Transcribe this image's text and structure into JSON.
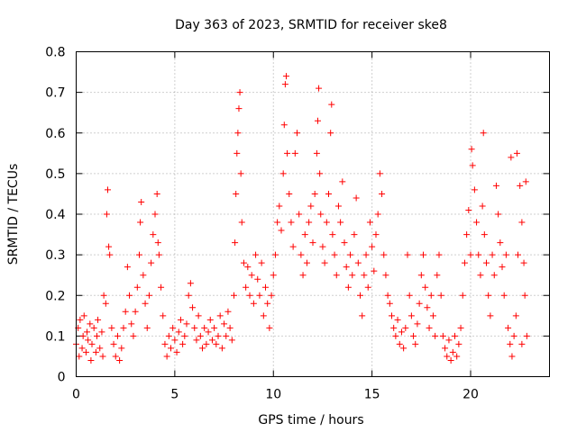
{
  "chart_data": {
    "type": "scatter",
    "title": "Day 363 of 2023, SRMTID for receiver ske8",
    "xlabel": "GPS time / hours",
    "ylabel": "SRMTID / TECUs",
    "xlim": [
      0,
      24
    ],
    "ylim": [
      0,
      0.8
    ],
    "xticks": [
      0,
      5,
      10,
      15,
      20
    ],
    "yticks": [
      0,
      0.1,
      0.2,
      0.3,
      0.4,
      0.5,
      0.6,
      0.7,
      0.8
    ],
    "xtick_labels": [
      "0",
      "5",
      "10",
      "15",
      "20"
    ],
    "ytick_labels": [
      "0",
      "0.1",
      "0.2",
      "0.3",
      "0.4",
      "0.5",
      "0.6",
      "0.7",
      "0.8"
    ],
    "grid": true,
    "marker": "plus",
    "color": "#ff0000",
    "series": [
      {
        "name": "SRMTID",
        "points": [
          [
            0.0,
            0.08
          ],
          [
            0.1,
            0.12
          ],
          [
            0.15,
            0.05
          ],
          [
            0.2,
            0.14
          ],
          [
            0.3,
            0.07
          ],
          [
            0.35,
            0.1
          ],
          [
            0.4,
            0.15
          ],
          [
            0.5,
            0.06
          ],
          [
            0.55,
            0.11
          ],
          [
            0.6,
            0.09
          ],
          [
            0.7,
            0.13
          ],
          [
            0.75,
            0.04
          ],
          [
            0.8,
            0.08
          ],
          [
            0.9,
            0.12
          ],
          [
            1.0,
            0.06
          ],
          [
            1.05,
            0.1
          ],
          [
            1.1,
            0.14
          ],
          [
            1.2,
            0.07
          ],
          [
            1.3,
            0.11
          ],
          [
            1.35,
            0.05
          ],
          [
            1.4,
            0.2
          ],
          [
            1.5,
            0.18
          ],
          [
            1.55,
            0.4
          ],
          [
            1.6,
            0.46
          ],
          [
            1.65,
            0.32
          ],
          [
            1.7,
            0.3
          ],
          [
            1.8,
            0.12
          ],
          [
            1.9,
            0.08
          ],
          [
            2.0,
            0.05
          ],
          [
            2.1,
            0.1
          ],
          [
            2.2,
            0.04
          ],
          [
            2.3,
            0.07
          ],
          [
            2.4,
            0.12
          ],
          [
            2.5,
            0.16
          ],
          [
            2.6,
            0.27
          ],
          [
            2.7,
            0.2
          ],
          [
            2.8,
            0.13
          ],
          [
            2.9,
            0.1
          ],
          [
            3.0,
            0.16
          ],
          [
            3.1,
            0.22
          ],
          [
            3.2,
            0.3
          ],
          [
            3.25,
            0.38
          ],
          [
            3.3,
            0.43
          ],
          [
            3.4,
            0.25
          ],
          [
            3.5,
            0.18
          ],
          [
            3.6,
            0.12
          ],
          [
            3.7,
            0.2
          ],
          [
            3.8,
            0.28
          ],
          [
            3.9,
            0.35
          ],
          [
            4.0,
            0.4
          ],
          [
            4.1,
            0.45
          ],
          [
            4.15,
            0.33
          ],
          [
            4.2,
            0.3
          ],
          [
            4.3,
            0.22
          ],
          [
            4.4,
            0.15
          ],
          [
            4.5,
            0.08
          ],
          [
            4.6,
            0.05
          ],
          [
            4.7,
            0.1
          ],
          [
            4.8,
            0.07
          ],
          [
            4.9,
            0.12
          ],
          [
            5.0,
            0.09
          ],
          [
            5.1,
            0.06
          ],
          [
            5.2,
            0.11
          ],
          [
            5.3,
            0.14
          ],
          [
            5.4,
            0.08
          ],
          [
            5.5,
            0.1
          ],
          [
            5.6,
            0.13
          ],
          [
            5.7,
            0.2
          ],
          [
            5.8,
            0.23
          ],
          [
            5.9,
            0.17
          ],
          [
            6.0,
            0.12
          ],
          [
            6.1,
            0.09
          ],
          [
            6.2,
            0.15
          ],
          [
            6.3,
            0.1
          ],
          [
            6.4,
            0.07
          ],
          [
            6.5,
            0.12
          ],
          [
            6.6,
            0.08
          ],
          [
            6.7,
            0.11
          ],
          [
            6.8,
            0.14
          ],
          [
            6.9,
            0.09
          ],
          [
            7.0,
            0.12
          ],
          [
            7.1,
            0.08
          ],
          [
            7.2,
            0.1
          ],
          [
            7.3,
            0.15
          ],
          [
            7.4,
            0.07
          ],
          [
            7.5,
            0.13
          ],
          [
            7.6,
            0.1
          ],
          [
            7.7,
            0.16
          ],
          [
            7.8,
            0.12
          ],
          [
            7.9,
            0.09
          ],
          [
            8.0,
            0.2
          ],
          [
            8.05,
            0.33
          ],
          [
            8.1,
            0.45
          ],
          [
            8.15,
            0.55
          ],
          [
            8.2,
            0.6
          ],
          [
            8.25,
            0.66
          ],
          [
            8.3,
            0.7
          ],
          [
            8.35,
            0.5
          ],
          [
            8.4,
            0.38
          ],
          [
            8.5,
            0.28
          ],
          [
            8.6,
            0.22
          ],
          [
            8.7,
            0.27
          ],
          [
            8.8,
            0.2
          ],
          [
            8.9,
            0.25
          ],
          [
            9.0,
            0.18
          ],
          [
            9.1,
            0.3
          ],
          [
            9.2,
            0.24
          ],
          [
            9.3,
            0.2
          ],
          [
            9.4,
            0.28
          ],
          [
            9.5,
            0.15
          ],
          [
            9.6,
            0.22
          ],
          [
            9.7,
            0.18
          ],
          [
            9.8,
            0.12
          ],
          [
            9.9,
            0.2
          ],
          [
            10.0,
            0.25
          ],
          [
            10.1,
            0.3
          ],
          [
            10.2,
            0.38
          ],
          [
            10.3,
            0.42
          ],
          [
            10.4,
            0.36
          ],
          [
            10.5,
            0.5
          ],
          [
            10.55,
            0.62
          ],
          [
            10.6,
            0.72
          ],
          [
            10.65,
            0.74
          ],
          [
            10.7,
            0.55
          ],
          [
            10.8,
            0.45
          ],
          [
            10.9,
            0.38
          ],
          [
            11.0,
            0.32
          ],
          [
            11.1,
            0.55
          ],
          [
            11.2,
            0.6
          ],
          [
            11.3,
            0.4
          ],
          [
            11.4,
            0.3
          ],
          [
            11.5,
            0.25
          ],
          [
            11.6,
            0.35
          ],
          [
            11.7,
            0.28
          ],
          [
            11.8,
            0.38
          ],
          [
            11.9,
            0.42
          ],
          [
            12.0,
            0.33
          ],
          [
            12.1,
            0.45
          ],
          [
            12.2,
            0.55
          ],
          [
            12.25,
            0.63
          ],
          [
            12.3,
            0.71
          ],
          [
            12.35,
            0.5
          ],
          [
            12.4,
            0.4
          ],
          [
            12.5,
            0.32
          ],
          [
            12.6,
            0.28
          ],
          [
            12.7,
            0.38
          ],
          [
            12.8,
            0.45
          ],
          [
            12.9,
            0.6
          ],
          [
            12.95,
            0.67
          ],
          [
            13.0,
            0.35
          ],
          [
            13.1,
            0.3
          ],
          [
            13.2,
            0.25
          ],
          [
            13.3,
            0.42
          ],
          [
            13.4,
            0.38
          ],
          [
            13.5,
            0.48
          ],
          [
            13.6,
            0.33
          ],
          [
            13.7,
            0.27
          ],
          [
            13.8,
            0.22
          ],
          [
            13.9,
            0.3
          ],
          [
            14.0,
            0.25
          ],
          [
            14.1,
            0.35
          ],
          [
            14.2,
            0.44
          ],
          [
            14.3,
            0.28
          ],
          [
            14.4,
            0.2
          ],
          [
            14.5,
            0.15
          ],
          [
            14.6,
            0.25
          ],
          [
            14.7,
            0.3
          ],
          [
            14.8,
            0.22
          ],
          [
            14.9,
            0.38
          ],
          [
            15.0,
            0.32
          ],
          [
            15.1,
            0.26
          ],
          [
            15.2,
            0.35
          ],
          [
            15.3,
            0.4
          ],
          [
            15.4,
            0.5
          ],
          [
            15.5,
            0.45
          ],
          [
            15.6,
            0.3
          ],
          [
            15.7,
            0.25
          ],
          [
            15.8,
            0.2
          ],
          [
            15.9,
            0.18
          ],
          [
            16.0,
            0.15
          ],
          [
            16.1,
            0.12
          ],
          [
            16.2,
            0.1
          ],
          [
            16.3,
            0.14
          ],
          [
            16.4,
            0.08
          ],
          [
            16.5,
            0.11
          ],
          [
            16.6,
            0.07
          ],
          [
            16.7,
            0.12
          ],
          [
            16.8,
            0.3
          ],
          [
            16.9,
            0.2
          ],
          [
            17.0,
            0.15
          ],
          [
            17.1,
            0.1
          ],
          [
            17.2,
            0.08
          ],
          [
            17.3,
            0.13
          ],
          [
            17.4,
            0.18
          ],
          [
            17.5,
            0.25
          ],
          [
            17.6,
            0.3
          ],
          [
            17.7,
            0.22
          ],
          [
            17.8,
            0.17
          ],
          [
            17.9,
            0.12
          ],
          [
            18.0,
            0.2
          ],
          [
            18.1,
            0.15
          ],
          [
            18.2,
            0.1
          ],
          [
            18.3,
            0.25
          ],
          [
            18.4,
            0.3
          ],
          [
            18.5,
            0.2
          ],
          [
            18.6,
            0.1
          ],
          [
            18.7,
            0.07
          ],
          [
            18.8,
            0.05
          ],
          [
            18.9,
            0.09
          ],
          [
            19.0,
            0.04
          ],
          [
            19.1,
            0.06
          ],
          [
            19.2,
            0.1
          ],
          [
            19.3,
            0.05
          ],
          [
            19.4,
            0.08
          ],
          [
            19.5,
            0.12
          ],
          [
            19.6,
            0.2
          ],
          [
            19.7,
            0.28
          ],
          [
            19.8,
            0.35
          ],
          [
            19.9,
            0.41
          ],
          [
            20.0,
            0.3
          ],
          [
            20.05,
            0.56
          ],
          [
            20.1,
            0.52
          ],
          [
            20.2,
            0.46
          ],
          [
            20.3,
            0.38
          ],
          [
            20.4,
            0.3
          ],
          [
            20.5,
            0.25
          ],
          [
            20.6,
            0.42
          ],
          [
            20.65,
            0.6
          ],
          [
            20.7,
            0.35
          ],
          [
            20.8,
            0.28
          ],
          [
            20.9,
            0.2
          ],
          [
            21.0,
            0.15
          ],
          [
            21.1,
            0.3
          ],
          [
            21.2,
            0.25
          ],
          [
            21.3,
            0.47
          ],
          [
            21.4,
            0.4
          ],
          [
            21.5,
            0.33
          ],
          [
            21.6,
            0.27
          ],
          [
            21.7,
            0.2
          ],
          [
            21.8,
            0.3
          ],
          [
            21.9,
            0.12
          ],
          [
            22.0,
            0.08
          ],
          [
            22.05,
            0.54
          ],
          [
            22.1,
            0.05
          ],
          [
            22.2,
            0.1
          ],
          [
            22.3,
            0.15
          ],
          [
            22.35,
            0.55
          ],
          [
            22.4,
            0.3
          ],
          [
            22.5,
            0.47
          ],
          [
            22.6,
            0.38
          ],
          [
            22.7,
            0.28
          ],
          [
            22.75,
            0.2
          ],
          [
            22.8,
            0.48
          ],
          [
            22.85,
            0.1
          ],
          [
            22.6,
            0.08
          ]
        ]
      }
    ]
  }
}
